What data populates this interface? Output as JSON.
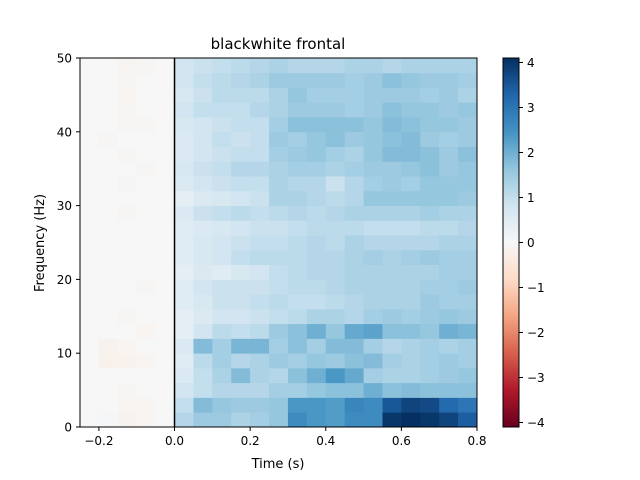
{
  "chart_data": {
    "type": "heatmap",
    "title": "blackwhite frontal",
    "xlabel": "Time (s)",
    "ylabel": "Frequency (Hz)",
    "xlim": [
      -0.25,
      0.8
    ],
    "ylim": [
      0,
      50
    ],
    "x_ticks": [
      -0.2,
      0.0,
      0.2,
      0.4,
      0.6,
      0.8
    ],
    "x_tick_labels": [
      "−0.2",
      "0.0",
      "0.2",
      "0.4",
      "0.6",
      "0.8"
    ],
    "y_ticks": [
      0,
      10,
      20,
      30,
      40,
      50
    ],
    "y_tick_labels": [
      "0",
      "10",
      "20",
      "30",
      "40",
      "50"
    ],
    "vline_x": 0.0,
    "colormap": "RdBu_r",
    "colorbar": {
      "vmin": -4.1,
      "vmax": 4.1,
      "ticks": [
        -4,
        -3,
        -2,
        -1,
        0,
        1,
        2,
        3,
        4
      ],
      "tick_labels": [
        "−4",
        "−3",
        "−2",
        "−1",
        "0",
        "1",
        "2",
        "3",
        "4"
      ]
    },
    "time_bin_width": 0.05,
    "freq_edges": [
      0,
      2,
      4,
      6,
      8,
      10,
      12,
      14,
      16,
      18,
      20,
      22,
      24,
      26,
      28,
      30,
      32,
      34,
      36,
      38,
      40,
      42,
      44,
      46,
      48,
      50
    ],
    "values": [
      [
        0.0,
        0.05,
        -0.15,
        -0.1,
        0.0,
        1.2,
        1.5,
        1.5,
        1.3,
        1.4,
        1.6,
        2.6,
        2.4,
        2.3,
        2.6,
        2.6,
        4.0,
        4.1,
        4.0,
        3.8,
        3.4
      ],
      [
        0.0,
        0.0,
        -0.1,
        -0.1,
        0.0,
        1.0,
        1.8,
        1.6,
        1.5,
        1.5,
        1.6,
        2.4,
        2.4,
        2.3,
        2.7,
        2.6,
        3.5,
        3.8,
        3.7,
        3.2,
        3.0
      ],
      [
        0.0,
        0.0,
        -0.05,
        0.0,
        0.0,
        0.8,
        1.0,
        1.2,
        1.2,
        1.2,
        1.4,
        1.4,
        1.6,
        1.7,
        1.7,
        2.0,
        1.7,
        1.8,
        1.7,
        1.7,
        1.7
      ],
      [
        0.0,
        0.0,
        0.0,
        0.0,
        0.0,
        0.6,
        1.0,
        1.3,
        1.8,
        1.3,
        1.2,
        1.7,
        2.0,
        2.4,
        2.1,
        1.4,
        1.3,
        1.3,
        1.4,
        1.5,
        1.6
      ],
      [
        0.0,
        -0.2,
        -0.15,
        -0.1,
        0.0,
        0.5,
        1.1,
        1.4,
        1.2,
        1.3,
        1.5,
        1.4,
        1.6,
        1.5,
        1.7,
        1.8,
        1.4,
        1.3,
        1.4,
        1.5,
        1.4
      ],
      [
        0.0,
        -0.15,
        -0.1,
        0.0,
        0.0,
        0.6,
        1.8,
        1.4,
        1.9,
        1.9,
        1.4,
        1.7,
        1.4,
        1.8,
        1.8,
        1.4,
        1.2,
        1.3,
        1.4,
        1.3,
        1.4
      ],
      [
        0.0,
        0.0,
        0.0,
        -0.1,
        0.0,
        0.4,
        0.8,
        1.1,
        1.0,
        1.1,
        1.5,
        1.7,
        2.0,
        1.6,
        2.1,
        2.2,
        1.7,
        1.7,
        1.6,
        2.0,
        1.9
      ],
      [
        0.0,
        0.0,
        -0.05,
        0.0,
        0.0,
        0.4,
        0.6,
        0.8,
        0.8,
        0.9,
        1.0,
        1.1,
        1.3,
        1.3,
        1.2,
        1.4,
        1.5,
        1.4,
        1.5,
        1.6,
        1.5
      ],
      [
        0.0,
        0.0,
        0.0,
        0.0,
        0.0,
        0.5,
        0.7,
        0.9,
        0.9,
        1.0,
        1.1,
        1.0,
        1.0,
        1.1,
        1.2,
        1.3,
        1.3,
        1.3,
        1.5,
        1.4,
        1.4
      ],
      [
        0.0,
        0.0,
        0.0,
        -0.05,
        0.0,
        0.5,
        0.8,
        0.9,
        0.9,
        0.9,
        1.0,
        1.1,
        1.1,
        1.2,
        1.3,
        1.3,
        1.3,
        1.3,
        1.4,
        1.4,
        1.5
      ],
      [
        0.0,
        0.0,
        0.0,
        0.0,
        0.0,
        0.4,
        0.6,
        0.5,
        0.7,
        0.8,
        1.0,
        1.1,
        1.2,
        1.2,
        1.3,
        1.3,
        1.3,
        1.3,
        1.3,
        1.4,
        1.4
      ],
      [
        0.0,
        0.0,
        0.0,
        0.0,
        0.0,
        0.5,
        0.7,
        0.8,
        1.0,
        1.1,
        1.1,
        1.1,
        1.2,
        1.2,
        1.3,
        1.4,
        1.3,
        1.4,
        1.5,
        1.4,
        1.4
      ],
      [
        0.0,
        0.0,
        0.0,
        0.0,
        0.0,
        0.5,
        0.7,
        0.8,
        0.9,
        1.0,
        1.0,
        1.1,
        1.2,
        1.1,
        1.3,
        1.2,
        1.2,
        1.2,
        1.2,
        1.3,
        1.3
      ],
      [
        0.0,
        0.0,
        0.0,
        0.0,
        0.0,
        0.5,
        0.6,
        0.7,
        0.8,
        0.9,
        0.9,
        1.0,
        1.1,
        1.1,
        1.1,
        1.0,
        1.0,
        1.0,
        1.1,
        1.1,
        1.2
      ],
      [
        0.0,
        0.0,
        -0.05,
        0.0,
        0.0,
        0.6,
        0.9,
        1.0,
        1.1,
        1.0,
        1.1,
        1.2,
        1.1,
        1.2,
        1.3,
        1.3,
        1.3,
        1.3,
        1.4,
        1.3,
        1.3
      ],
      [
        0.0,
        0.0,
        0.0,
        0.0,
        0.0,
        0.4,
        0.6,
        0.7,
        0.8,
        0.9,
        1.3,
        1.3,
        1.2,
        1.1,
        1.2,
        1.6,
        1.6,
        1.6,
        1.6,
        1.6,
        1.5
      ],
      [
        0.0,
        0.0,
        -0.05,
        0.0,
        0.0,
        0.6,
        0.8,
        0.9,
        1.0,
        1.0,
        1.3,
        1.2,
        1.2,
        0.9,
        1.2,
        1.4,
        1.5,
        1.4,
        1.6,
        1.6,
        1.6
      ],
      [
        0.0,
        0.0,
        0.0,
        -0.05,
        0.0,
        0.7,
        0.9,
        1.0,
        1.2,
        1.2,
        1.3,
        1.4,
        1.4,
        1.3,
        1.4,
        1.5,
        1.5,
        1.6,
        1.7,
        1.5,
        1.6
      ],
      [
        0.0,
        0.0,
        -0.05,
        0.0,
        0.0,
        0.6,
        0.8,
        0.9,
        1.0,
        1.0,
        1.4,
        1.5,
        1.6,
        1.4,
        1.3,
        1.6,
        1.8,
        1.8,
        1.7,
        1.5,
        1.7
      ],
      [
        0.0,
        -0.05,
        0.0,
        0.0,
        0.0,
        0.6,
        0.8,
        1.0,
        0.9,
        1.0,
        1.5,
        1.4,
        1.6,
        1.7,
        1.5,
        1.6,
        1.7,
        1.8,
        1.5,
        1.4,
        1.5
      ],
      [
        0.0,
        0.0,
        -0.05,
        -0.05,
        0.0,
        0.7,
        0.8,
        0.9,
        1.0,
        1.0,
        1.4,
        1.7,
        1.7,
        1.7,
        1.7,
        1.6,
        1.8,
        1.7,
        1.6,
        1.6,
        1.5
      ],
      [
        0.0,
        0.0,
        -0.05,
        0.0,
        0.0,
        0.8,
        1.0,
        1.0,
        1.0,
        1.2,
        1.3,
        1.5,
        1.5,
        1.5,
        1.4,
        1.5,
        1.7,
        1.6,
        1.6,
        1.5,
        1.6
      ],
      [
        0.0,
        0.0,
        -0.1,
        0.0,
        0.0,
        0.7,
        0.9,
        1.1,
        1.1,
        1.1,
        1.3,
        1.6,
        1.4,
        1.4,
        1.4,
        1.5,
        1.5,
        1.5,
        1.4,
        1.5,
        1.3
      ],
      [
        0.0,
        0.0,
        -0.05,
        0.0,
        0.0,
        0.8,
        1.0,
        1.1,
        1.2,
        1.3,
        1.5,
        1.5,
        1.5,
        1.5,
        1.4,
        1.5,
        1.7,
        1.6,
        1.5,
        1.5,
        1.4
      ],
      [
        0.0,
        0.0,
        -0.1,
        -0.05,
        0.0,
        0.8,
        0.9,
        1.0,
        1.1,
        1.2,
        1.3,
        1.2,
        1.2,
        1.2,
        1.3,
        1.3,
        1.2,
        1.3,
        1.3,
        1.3,
        1.3
      ]
    ]
  }
}
